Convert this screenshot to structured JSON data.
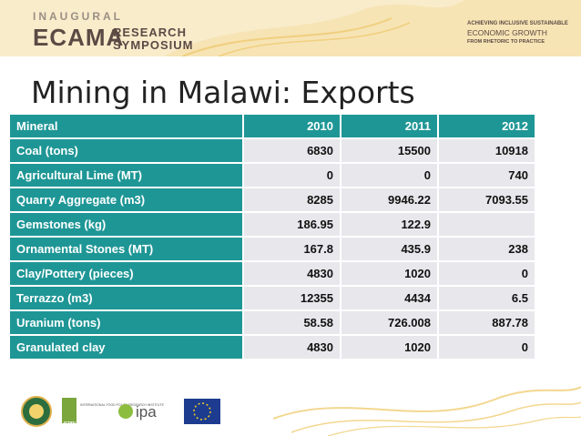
{
  "banner": {
    "logo_top": "INAUGURAL",
    "logo_main": "ECAMA",
    "logo_research": "RESEARCH",
    "logo_symposium": "SYMPOSIUM",
    "tagline_1": "ACHIEVING INCLUSIVE SUSTAINABLE",
    "tagline_2": "ECONOMIC GROWTH",
    "tagline_3": "FROM RHETORIC TO PRACTICE"
  },
  "title": "Mining in Malawi: Exports",
  "table": {
    "headers": [
      "Mineral",
      "2010",
      "2011",
      "2012"
    ],
    "rows": [
      [
        "Coal (tons)",
        "6830",
        "15500",
        "10918"
      ],
      [
        "Agricultural Lime (MT)",
        "0",
        "0",
        "740"
      ],
      [
        "Quarry Aggregate (m3)",
        "8285",
        "9946.22",
        "7093.55"
      ],
      [
        "Gemstones (kg)",
        "186.95",
        "122.9",
        ""
      ],
      [
        "Ornamental Stones (MT)",
        "167.8",
        "435.9",
        "238"
      ],
      [
        "Clay/Pottery (pieces)",
        "4830",
        "1020",
        "0"
      ],
      [
        "Terrazzo (m3)",
        "12355",
        "4434",
        "6.5"
      ],
      [
        "Uranium (tons)",
        "58.58",
        "726.008",
        "887.78"
      ],
      [
        "Granulated clay",
        "4830",
        "1020",
        "0"
      ]
    ]
  },
  "footer_logos": {
    "ifpri_text": "INTERNATIONAL FOOD POLICY RESEARCH INSTITUTE",
    "ifpri_short": "IFPRI",
    "ipa": "ipa"
  },
  "colors": {
    "header_teal": "#1f9696",
    "cell_gray": "#e8e8ec",
    "banner_cream": "#f9eccb"
  }
}
